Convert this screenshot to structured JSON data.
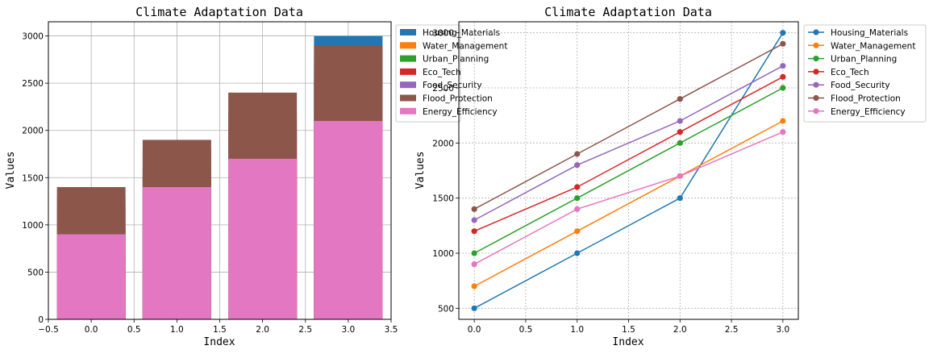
{
  "chart_data": [
    {
      "type": "bar",
      "title": "Climate Adaptation Data",
      "xlabel": "Index",
      "ylabel": "Values",
      "x": [
        0,
        1,
        2,
        3
      ],
      "xlim": [
        -0.5,
        3.5
      ],
      "ylim": [
        0,
        3150
      ],
      "xticks": [
        "−0.5",
        "0.0",
        "0.5",
        "1.0",
        "1.5",
        "2.0",
        "2.5",
        "3.0",
        "3.5"
      ],
      "yticks": [
        "0",
        "500",
        "1000",
        "1500",
        "2000",
        "2500",
        "3000"
      ],
      "grid": true,
      "legend_position": "outside-right",
      "series": [
        {
          "name": "Housing_Materials",
          "color": "#1f77b4",
          "values": [
            500,
            1000,
            1500,
            3000
          ]
        },
        {
          "name": "Water_Management",
          "color": "#ff7f0e",
          "values": [
            700,
            1200,
            1700,
            2200
          ]
        },
        {
          "name": "Urban_Planning",
          "color": "#2ca02c",
          "values": [
            1000,
            1500,
            2000,
            2500
          ]
        },
        {
          "name": "Eco_Tech",
          "color": "#d62728",
          "values": [
            1200,
            1600,
            2100,
            2600
          ]
        },
        {
          "name": "Food_Security",
          "color": "#9467bd",
          "values": [
            1300,
            1800,
            2200,
            2700
          ]
        },
        {
          "name": "Flood_Protection",
          "color": "#8c564b",
          "values": [
            1400,
            1900,
            2400,
            2900
          ]
        },
        {
          "name": "Energy_Efficiency",
          "color": "#e377c2",
          "values": [
            900,
            1400,
            1700,
            2100
          ]
        }
      ]
    },
    {
      "type": "line",
      "title": "Climate Adaptation Data",
      "xlabel": "Index",
      "ylabel": "Values",
      "x": [
        0,
        1,
        2,
        3
      ],
      "xlim": [
        -0.15,
        3.15
      ],
      "ylim": [
        400,
        3100
      ],
      "xticks": [
        "0.0",
        "0.5",
        "1.0",
        "1.5",
        "2.0",
        "2.5",
        "3.0"
      ],
      "yticks": [
        "500",
        "1000",
        "1500",
        "2000",
        "2500",
        "3000"
      ],
      "grid": "dashed",
      "legend_position": "outside-right",
      "series": [
        {
          "name": "Housing_Materials",
          "color": "#1f77b4",
          "values": [
            500,
            1000,
            1500,
            3000
          ]
        },
        {
          "name": "Water_Management",
          "color": "#ff7f0e",
          "values": [
            700,
            1200,
            1700,
            2200
          ]
        },
        {
          "name": "Urban_Planning",
          "color": "#2ca02c",
          "values": [
            1000,
            1500,
            2000,
            2500
          ]
        },
        {
          "name": "Eco_Tech",
          "color": "#d62728",
          "values": [
            1200,
            1600,
            2100,
            2600
          ]
        },
        {
          "name": "Food_Security",
          "color": "#9467bd",
          "values": [
            1300,
            1800,
            2200,
            2700
          ]
        },
        {
          "name": "Flood_Protection",
          "color": "#8c564b",
          "values": [
            1400,
            1900,
            2400,
            2900
          ]
        },
        {
          "name": "Energy_Efficiency",
          "color": "#e377c2",
          "values": [
            900,
            1400,
            1700,
            2100
          ]
        }
      ]
    }
  ]
}
